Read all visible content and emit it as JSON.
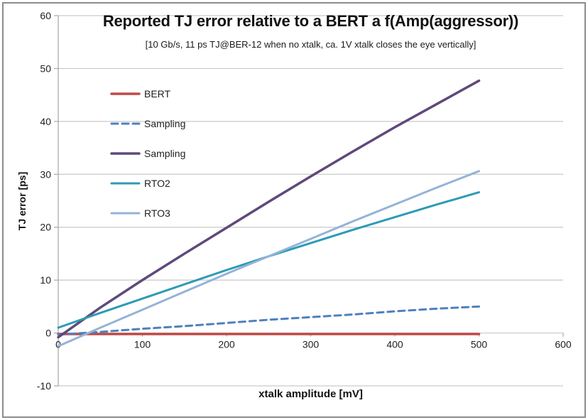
{
  "window": {
    "background": "#FFFFFF",
    "border_color": "#8C8C8C"
  },
  "style": {
    "grid_color": "#C9C9C9",
    "axis_color": "#A6A6A6",
    "tick_text_color": "#1F1F1F",
    "legend_text_color": "#1F1F1F"
  },
  "chart_data": {
    "type": "line",
    "title": "Reported TJ error relative to a BERT a f(Amp(aggressor))",
    "subtitle": "[10 Gb/s, 11 ps TJ@BER-12 when no xtalk, ca. 1V xtalk closes the eye vertically]",
    "xlabel": "xtalk amplitude [mV]",
    "ylabel": "TJ error [ps]",
    "xlim": [
      0,
      600
    ],
    "ylim": [
      -10,
      60
    ],
    "xticks": [
      0,
      100,
      200,
      300,
      400,
      500,
      600
    ],
    "yticks": [
      -10,
      0,
      10,
      20,
      30,
      40,
      50,
      60
    ],
    "grid": "horizontal-only",
    "legend_position": "inside-top-left",
    "x": [
      0,
      50,
      100,
      150,
      200,
      250,
      300,
      350,
      400,
      450,
      500
    ],
    "series": [
      {
        "name": "BERT",
        "color": "#BE4B48",
        "dash": "solid",
        "width": 3.5,
        "values": [
          -0.2,
          -0.2,
          -0.2,
          -0.2,
          -0.2,
          -0.2,
          -0.2,
          -0.2,
          -0.2,
          -0.2,
          -0.2
        ]
      },
      {
        "name": "Sampling",
        "color": "#4F81BD",
        "dash": "dashed",
        "width": 3,
        "values": [
          -0.3,
          0.2,
          0.8,
          1.3,
          1.9,
          2.5,
          3.0,
          3.5,
          4.1,
          4.6,
          5.0
        ]
      },
      {
        "name": "Sampling",
        "color": "#5F497A",
        "dash": "solid",
        "width": 3.5,
        "values": [
          -0.8,
          4.8,
          10.0,
          15.0,
          19.9,
          24.8,
          29.6,
          34.3,
          38.9,
          43.3,
          47.7
        ]
      },
      {
        "name": "RTO2",
        "color": "#2D9BB5",
        "dash": "solid",
        "width": 3,
        "values": [
          1.0,
          3.8,
          6.5,
          9.2,
          11.9,
          14.5,
          17.0,
          19.5,
          21.9,
          24.3,
          26.6
        ]
      },
      {
        "name": "RTO3",
        "color": "#95B3D7",
        "dash": "solid",
        "width": 3,
        "values": [
          -2.5,
          1.0,
          4.4,
          7.8,
          11.2,
          14.5,
          17.8,
          21.1,
          24.3,
          27.5,
          30.6
        ]
      }
    ]
  }
}
